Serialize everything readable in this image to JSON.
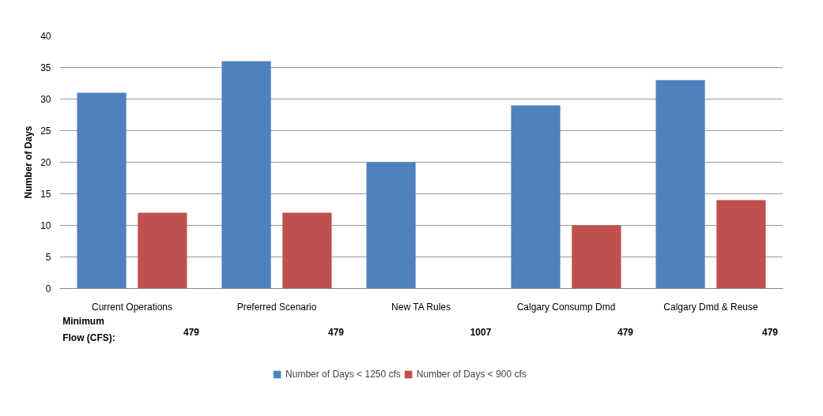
{
  "chart_data": {
    "type": "bar",
    "ylabel": "Number of Days",
    "categories": [
      "Current Operations",
      "Preferred Scenario",
      "New TA Rules",
      "Calgary Consump Dmd",
      "Calgary Dmd & Reuse"
    ],
    "series": [
      {
        "name": "Number of Days < 1250 cfs",
        "color": "#4f81bd",
        "values": [
          31,
          36,
          20,
          29,
          33
        ]
      },
      {
        "name": "Number of Days < 900 cfs",
        "color": "#c0504d",
        "values": [
          12,
          12,
          null,
          10,
          14
        ]
      }
    ],
    "ylim": [
      0,
      40
    ],
    "yticks": [
      0,
      5,
      10,
      15,
      20,
      25,
      30,
      35,
      40
    ],
    "grid": "y",
    "legend": "bottom",
    "annotations": [
      "Minimum Flow (CFS):",
      "479",
      "479",
      "1007",
      "479",
      "479"
    ]
  }
}
